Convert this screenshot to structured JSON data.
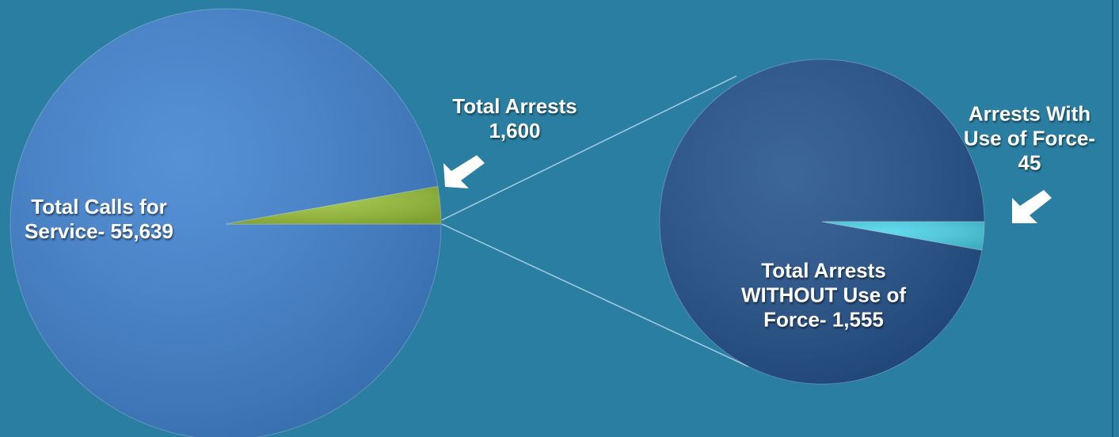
{
  "chart_data": [
    {
      "type": "pie",
      "categories": [
        "Total Calls for Service-",
        "Total Arrests"
      ],
      "values": [
        55639,
        1600
      ],
      "value_labels": [
        "55,639",
        "1,600"
      ],
      "colors": [
        "#3f82d0",
        "#9cc23c"
      ]
    },
    {
      "type": "pie",
      "categories": [
        "Total Arrests WITHOUT Use of Force-",
        "Arrests With Use of Force-"
      ],
      "values": [
        1555,
        45
      ],
      "value_labels": [
        "1,555",
        "45"
      ],
      "colors": [
        "#22518b",
        "#4dd4ea"
      ]
    }
  ]
}
